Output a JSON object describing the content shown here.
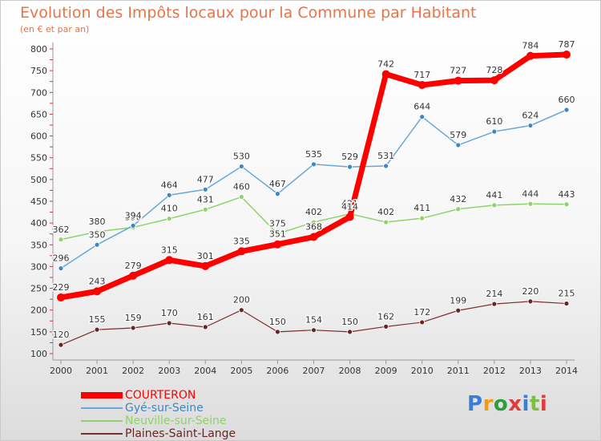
{
  "header": {
    "title": "Evolution des Impôts locaux pour la Commune par Habitant",
    "subtitle": "(en € et par an)"
  },
  "brand": {
    "text": "Proxiti",
    "colors": [
      "#3a7fd0",
      "#f39c12",
      "#2e9e3e",
      "#e23b3b",
      "#3a7fd0",
      "#7bc043",
      "#e23b3b"
    ]
  },
  "chart_data": {
    "type": "line",
    "x": [
      2000,
      2001,
      2002,
      2003,
      2004,
      2005,
      2006,
      2007,
      2008,
      2009,
      2010,
      2011,
      2012,
      2013,
      2014
    ],
    "ylim": [
      100,
      800
    ],
    "yticks": [
      100,
      150,
      200,
      250,
      300,
      350,
      400,
      450,
      500,
      550,
      600,
      650,
      700,
      750,
      800
    ],
    "grid": false,
    "legend_position": "bottom-left",
    "series": [
      {
        "name": "COURTERON",
        "color": "#ff0000",
        "marker": "#ff0000",
        "label_color": "#ffffff",
        "width": 7,
        "values": [
          229,
          243,
          279,
          315,
          301,
          335,
          351,
          368,
          414,
          742,
          717,
          727,
          728,
          784,
          787
        ]
      },
      {
        "name": "Gyé-sur-Seine",
        "color": "#6aa6d8",
        "marker": "#3f86c4",
        "label_color": "#333333",
        "width": 1.5,
        "values": [
          296,
          350,
          394,
          464,
          477,
          530,
          467,
          535,
          529,
          531,
          644,
          579,
          610,
          624,
          660
        ]
      },
      {
        "name": "Neuville-sur-Seine",
        "color": "#8ed36a",
        "marker": "#8ed36a",
        "label_color": "#333333",
        "width": 1.5,
        "values": [
          362,
          380,
          390,
          410,
          431,
          460,
          375,
          402,
          421,
          402,
          411,
          432,
          441,
          444,
          443
        ]
      },
      {
        "name": "Plaines-Saint-Lange",
        "color": "#7a2e2e",
        "marker": "#6b2424",
        "label_color": "#333333",
        "width": 1.2,
        "values": [
          120,
          155,
          159,
          170,
          161,
          200,
          150,
          154,
          150,
          162,
          172,
          199,
          214,
          220,
          215
        ]
      }
    ]
  }
}
